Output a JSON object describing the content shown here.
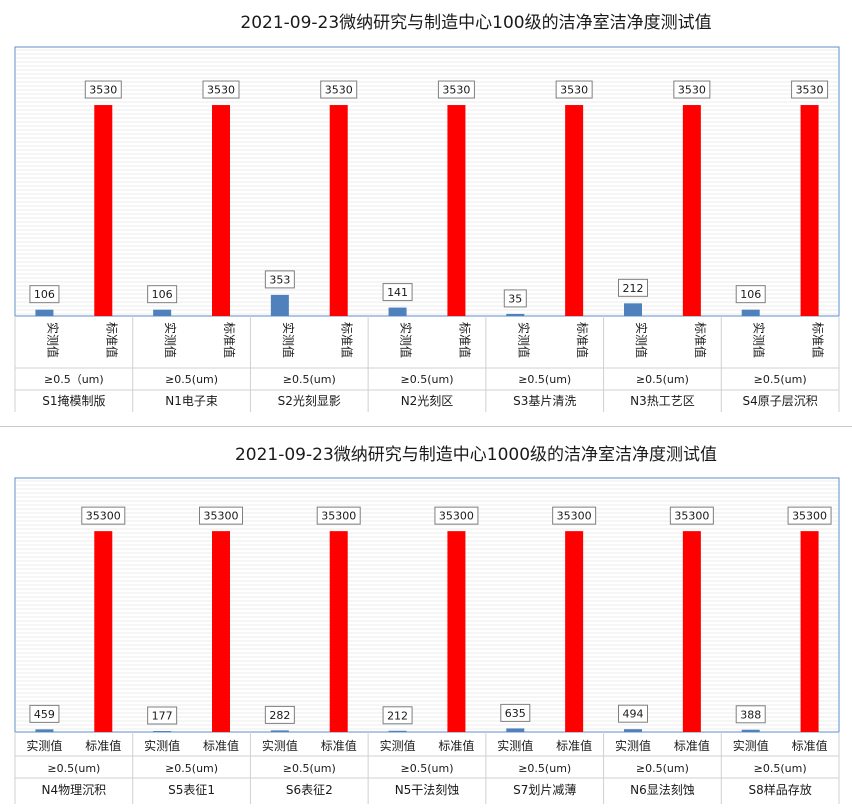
{
  "chart_data": [
    {
      "type": "bar",
      "title": "2021-09-23微纳研究与制造中心100级的洁净室洁净度测试值",
      "series_names": [
        "实测值",
        "标准值"
      ],
      "series_colors": [
        "#4f81bd",
        "#ff0000"
      ],
      "particle_size": [
        "≥0.5（um)",
        "≥0.5(um)",
        "≥0.5(um)",
        "≥0.5(um)",
        "≥0.5(um)",
        "≥0.5(um)",
        "≥0.5(um)"
      ],
      "categories": [
        "S1掩模制版",
        "N1电子束",
        "S2光刻显影",
        "N2光刻区",
        "S3基片清洗",
        "N3热工艺区",
        "S4原子层沉积"
      ],
      "series": [
        {
          "name": "实测值",
          "values": [
            106,
            106,
            353,
            141,
            35,
            212,
            106
          ]
        },
        {
          "name": "标准值",
          "values": [
            3530,
            3530,
            3530,
            3530,
            3530,
            3530,
            3530
          ]
        }
      ],
      "ylim": [
        0,
        4200
      ]
    },
    {
      "type": "bar",
      "title": "2021-09-23微纳研究与制造中心1000级的洁净室洁净度测试值",
      "series_names": [
        "实测值",
        "标准值"
      ],
      "series_colors": [
        "#4f81bd",
        "#ff0000"
      ],
      "particle_size": [
        "≥0.5(um)",
        "≥0.5(um)",
        "≥0.5(um)",
        "≥0.5(um)",
        "≥0.5(um)",
        "≥0.5(um)",
        "≥0.5(um)"
      ],
      "categories": [
        "N4物理沉积",
        "S5表征1",
        "S6表征2",
        "N5干法刻蚀",
        "S7划片减薄",
        "N6显法刻蚀",
        "S8样品存放"
      ],
      "series": [
        {
          "name": "实测值",
          "values": [
            459,
            177,
            282,
            212,
            635,
            494,
            388
          ]
        },
        {
          "name": "标准值",
          "values": [
            35300,
            35300,
            35300,
            35300,
            35300,
            35300,
            35300
          ]
        }
      ],
      "ylim": [
        0,
        42000
      ]
    }
  ]
}
